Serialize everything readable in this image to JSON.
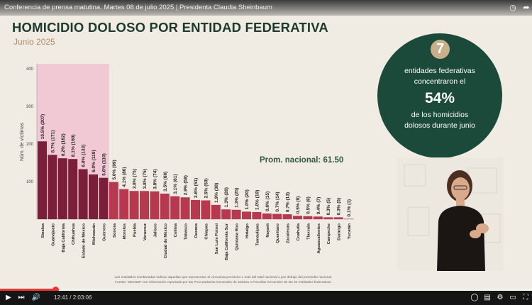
{
  "video": {
    "title": "Conferencia de prensa matutina. Martes 08 de julio 2025 | Presidenta Claudia Sheinbaum",
    "time_current": "12:41",
    "time_total": "2:03:06",
    "progress": 0.104
  },
  "slide": {
    "title": "HOMICIDIO DOLOSO POR ENTIDAD FEDERATIVA",
    "subtitle": "Junio 2025",
    "prom_label": "Prom. nacional: 61.50",
    "highlight": {
      "number": "7",
      "line1": "entidades federativas",
      "line2": "concentraron el",
      "pct": "54%",
      "line3": "de los homicidios",
      "line4": "dolosos durante junio"
    },
    "footnote1": "Las entidades sombreadas indican aquellas que representan el cincuenta porciento o más del total nacional o por debajo del promedio nacional.",
    "footnote2": "Fuente: SESNSP con información reportada por las Procuradurías Generales de Justicia o Fiscalías Generales de las 32 entidades federativas."
  },
  "colors": {
    "bar_dark": "#7a1e3a",
    "bar_light": "#b8394f",
    "highlight_bg": "#f0c9d5",
    "circle_bg": "#1c4a3a",
    "title": "#1e3a2e",
    "accent": "#c9b08a"
  },
  "chart_data": {
    "type": "bar",
    "ylabel": "Núm. de víctimas",
    "ylim": [
      0,
      400
    ],
    "yticks": [
      100,
      200,
      300,
      400
    ],
    "highlighted_count": 7,
    "categories": [
      "Sinaloa",
      "Guanajuato",
      "Baja California",
      "Chihuahua",
      "Estado de México",
      "Michoacán",
      "Guerrero",
      "Sonora",
      "Morelos",
      "Puebla",
      "Veracruz",
      "Jalisco",
      "Ciudad de México",
      "Colima",
      "Tabasco",
      "Oaxaca",
      "Chiapas",
      "San Luis Potosí",
      "Baja California Sur",
      "Quintana Roo",
      "Hidalgo",
      "Tamaulipas",
      "Nayarit",
      "Querétaro",
      "Zacatecas",
      "Coahuila",
      "Tlaxcala",
      "Aguascalientes",
      "Campeche",
      "Durango",
      "Yucatán"
    ],
    "values": [
      207,
      171,
      162,
      160,
      133,
      119,
      110,
      99,
      80,
      75,
      75,
      74,
      68,
      61,
      58,
      51,
      50,
      38,
      26,
      25,
      20,
      19,
      15,
      14,
      13,
      9,
      8,
      7,
      5,
      5,
      1
    ],
    "labels": [
      "10.5% (207)",
      "8.7% (171)",
      "8.2% (162)",
      "8.1% (160)",
      "6.8% (133)",
      "6.0% (119)",
      "5.6% (110)",
      "5.0% (99)",
      "4.1% (80)",
      "3.8% (75)",
      "3.8% (75)",
      "3.8% (74)",
      "3.5% (68)",
      "3.1% (61)",
      "2.9% (58)",
      "2.6% (51)",
      "2.5% (50)",
      "1.9% (38)",
      "1.3% (26)",
      "1.3% (25)",
      "1.0% (20)",
      "1.0% (19)",
      "0.8% (15)",
      "0.7% (14)",
      "0.7% (13)",
      "0.5% (9)",
      "0.5% (8)",
      "0.4% (7)",
      "0.3% (5)",
      "0.3% (5)",
      "0.1% (1)"
    ],
    "reference_line": 61.5
  }
}
